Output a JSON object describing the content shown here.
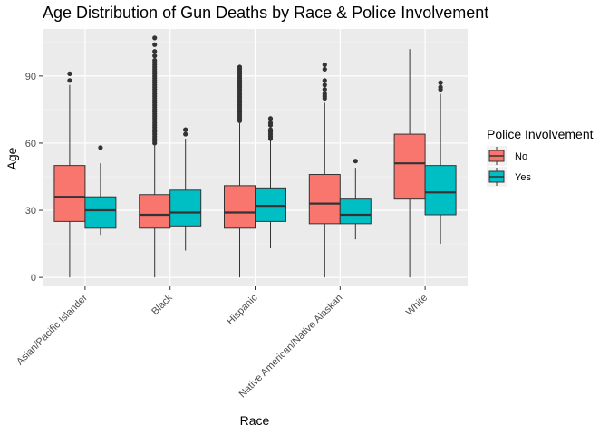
{
  "chart_data": {
    "type": "boxplot",
    "title": "Age Distribution of Gun Deaths by Race & Police Involvement",
    "xlabel": "Race",
    "ylabel": "Age",
    "ylim": [
      -4,
      111
    ],
    "yticks": [
      0,
      30,
      60,
      90
    ],
    "grid": true,
    "legend": {
      "title": "Police Involvement",
      "position": "right"
    },
    "categories": [
      "Asian/Pacific Islander",
      "Black",
      "Hispanic",
      "Native American/Native Alaskan",
      "White"
    ],
    "series": [
      {
        "name": "No",
        "color": "#F8766D",
        "boxes": [
          {
            "min": 0,
            "q1": 25,
            "median": 36,
            "q3": 50,
            "max": 86,
            "outliers": [
              88,
              91
            ]
          },
          {
            "min": 0,
            "q1": 22,
            "median": 28,
            "q3": 37,
            "max": 59,
            "outliers": [
              60,
              61,
              62,
              63,
              64,
              65,
              66,
              67,
              68,
              69,
              70,
              71,
              72,
              73,
              74,
              75,
              76,
              77,
              78,
              79,
              80,
              81,
              82,
              83,
              84,
              85,
              86,
              87,
              88,
              89,
              90,
              91,
              92,
              93,
              94,
              95,
              96,
              97,
              99,
              101,
              104,
              107
            ]
          },
          {
            "min": 0,
            "q1": 22,
            "median": 29,
            "q3": 41,
            "max": 69,
            "outliers": [
              70,
              71,
              72,
              73,
              74,
              75,
              76,
              77,
              78,
              79,
              80,
              81,
              82,
              83,
              84,
              85,
              86,
              87,
              88,
              89,
              90,
              91,
              92,
              93,
              94
            ]
          },
          {
            "min": 0,
            "q1": 24,
            "median": 33,
            "q3": 46,
            "max": 78,
            "outliers": [
              80,
              81,
              82,
              84,
              86,
              88,
              93,
              95
            ]
          },
          {
            "min": 0,
            "q1": 35,
            "median": 51,
            "q3": 64,
            "max": 102,
            "outliers": []
          }
        ]
      },
      {
        "name": "Yes",
        "color": "#00BFC4",
        "boxes": [
          {
            "min": 19,
            "q1": 22,
            "median": 30,
            "q3": 36,
            "max": 51,
            "outliers": [
              58
            ]
          },
          {
            "min": 12,
            "q1": 23,
            "median": 29,
            "q3": 39,
            "max": 62,
            "outliers": [
              64,
              66
            ]
          },
          {
            "min": 13,
            "q1": 25,
            "median": 32,
            "q3": 40,
            "max": 61,
            "outliers": [
              62,
              63,
              64,
              65,
              66,
              68,
              69,
              71
            ]
          },
          {
            "min": 17,
            "q1": 24,
            "median": 28,
            "q3": 35,
            "max": 49,
            "outliers": [
              52
            ]
          },
          {
            "min": 15,
            "q1": 28,
            "median": 38,
            "q3": 50,
            "max": 82,
            "outliers": [
              84,
              85,
              87
            ]
          }
        ]
      }
    ]
  }
}
